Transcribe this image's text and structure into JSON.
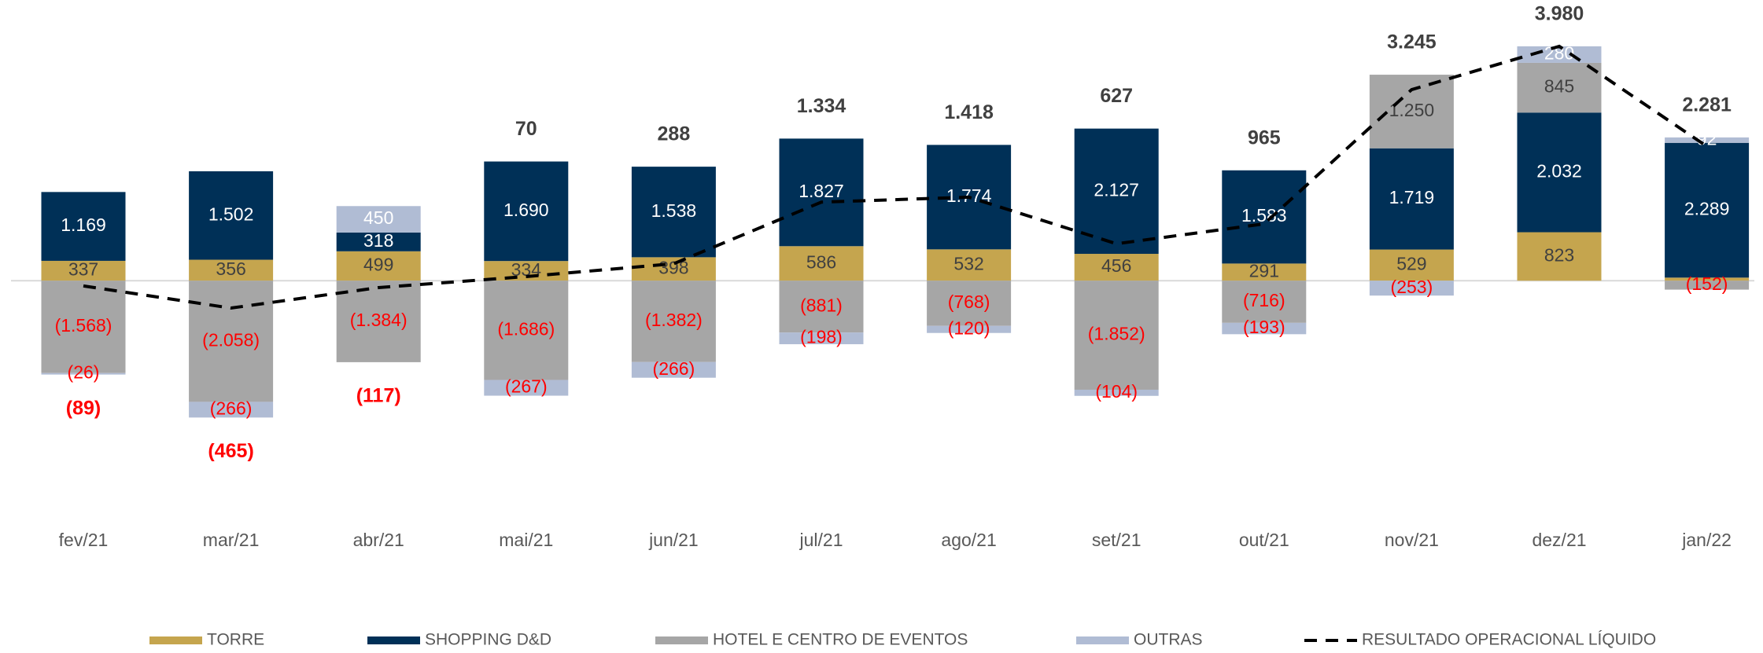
{
  "chart_data": {
    "type": "bar",
    "stacked": true,
    "categories": [
      "fev/21",
      "mar/21",
      "abr/21",
      "mai/21",
      "jun/21",
      "jul/21",
      "ago/21",
      "set/21",
      "out/21",
      "nov/21",
      "dez/21",
      "jan/22"
    ],
    "ylim": [
      -3000,
      4700
    ],
    "series": [
      {
        "name": "TORRE",
        "color": "#c5a54e",
        "values": [
          337,
          356,
          499,
          334,
          398,
          586,
          532,
          456,
          291,
          529,
          823,
          52
        ],
        "value_labels": [
          "337",
          "356",
          "499",
          "334",
          "398",
          "586",
          "532",
          "456",
          "291",
          "529",
          "823",
          null
        ]
      },
      {
        "name": "SHOPPING D&D",
        "color": "#003057",
        "values": [
          1169,
          1502,
          318,
          1690,
          1538,
          1827,
          1774,
          2127,
          1583,
          1719,
          2032,
          2289
        ],
        "value_labels": [
          "1.169",
          "1.502",
          "318",
          "1.690",
          "1.538",
          "1.827",
          "1.774",
          "2.127",
          "1.583",
          "1.719",
          "2.032",
          "2.289"
        ]
      },
      {
        "name": "HOTEL E CENTRO DE EVENTOS",
        "color": "#a6a6a6",
        "values": [
          -1568,
          -2058,
          -1384,
          -1686,
          -1382,
          -881,
          -768,
          -1852,
          -716,
          1250,
          845,
          -152
        ],
        "value_labels": [
          "(1.568)",
          "(2.058)",
          "(1.384)",
          "(1.686)",
          "(1.382)",
          "(881)",
          "(768)",
          "(1.852)",
          "(716)",
          "1.250",
          "845",
          "(152)"
        ]
      },
      {
        "name": "OUTRAS",
        "color": "#b0bcd4",
        "values": [
          -26,
          -266,
          450,
          -267,
          -266,
          -198,
          -120,
          -104,
          -193,
          -253,
          280,
          92
        ],
        "value_labels": [
          "(26)",
          "(266)",
          "450",
          "(267)",
          "(266)",
          "(198)",
          "(120)",
          "(104)",
          "(193)",
          "(253)",
          "280",
          "92"
        ]
      },
      {
        "name": "RESULTADO OPERACIONAL LÍQUIDO",
        "type": "line",
        "color": "#000000",
        "values": [
          -89,
          -465,
          -117,
          70,
          288,
          1334,
          1418,
          627,
          965,
          3245,
          3980,
          2281
        ],
        "value_labels": [
          "(89)",
          "(465)",
          "(117)",
          "70",
          "288",
          "1.334",
          "1.418",
          "627",
          "965",
          "3.245",
          "3.980",
          "2.281"
        ]
      }
    ]
  }
}
